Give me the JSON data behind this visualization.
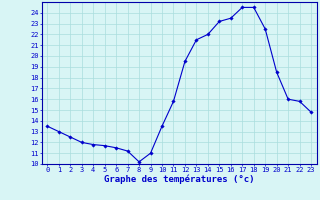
{
  "hours": [
    0,
    1,
    2,
    3,
    4,
    5,
    6,
    7,
    8,
    9,
    10,
    11,
    12,
    13,
    14,
    15,
    16,
    17,
    18,
    19,
    20,
    21,
    22,
    23
  ],
  "temps": [
    13.5,
    13.0,
    12.5,
    12.0,
    11.8,
    11.7,
    11.5,
    11.2,
    10.2,
    11.0,
    13.5,
    15.8,
    19.5,
    21.5,
    22.0,
    23.2,
    23.5,
    24.5,
    24.5,
    22.5,
    18.5,
    16.0,
    15.8,
    14.8
  ],
  "line_color": "#0000cc",
  "marker": "D",
  "marker_size": 1.8,
  "bg_color": "#d8f5f5",
  "grid_color": "#aadddd",
  "xlabel": "Graphe des températures (°c)",
  "xlabel_color": "#0000cc",
  "ylabel_ticks": [
    10,
    11,
    12,
    13,
    14,
    15,
    16,
    17,
    18,
    19,
    20,
    21,
    22,
    23,
    24
  ],
  "xlim": [
    -0.5,
    23.5
  ],
  "ylim": [
    10,
    25
  ],
  "tick_color": "#0000cc",
  "spine_color": "#0000aa",
  "axis_bg": "#d8f5f5",
  "tick_fontsize": 5.0,
  "xlabel_fontsize": 6.5
}
